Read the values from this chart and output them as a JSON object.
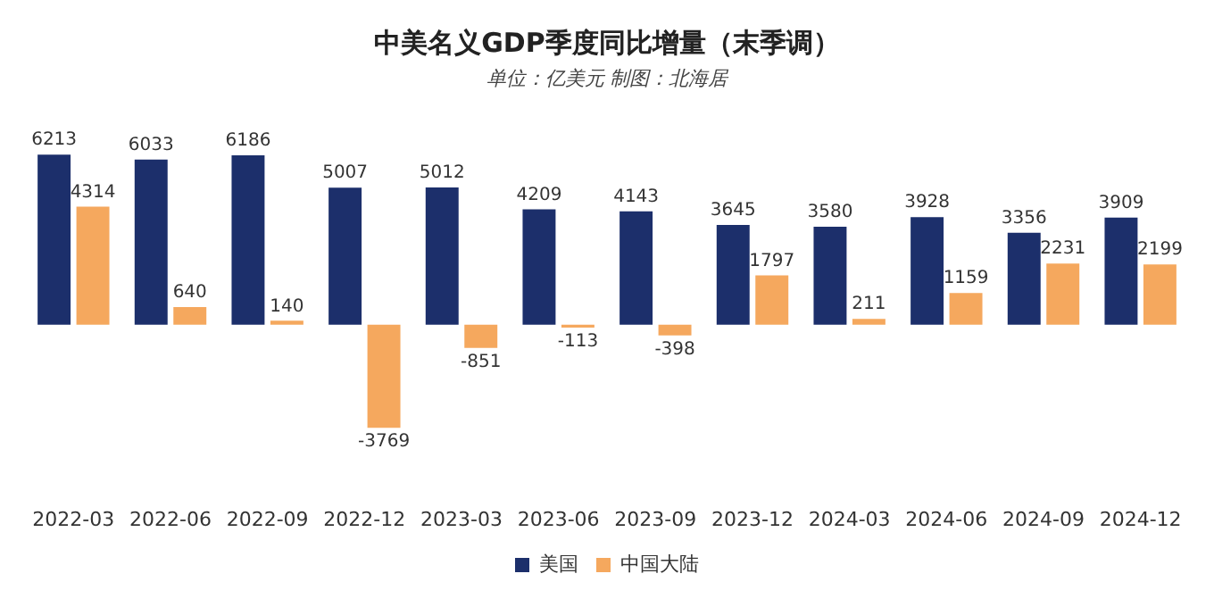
{
  "chart_data": {
    "type": "bar",
    "title": "中美名义GDP季度同比增量（末季调）",
    "subtitle": "单位：亿美元 制图：北海居",
    "categories": [
      "2022-03",
      "2022-06",
      "2022-09",
      "2022-12",
      "2023-03",
      "2023-06",
      "2023-09",
      "2023-12",
      "2024-03",
      "2024-06",
      "2024-09",
      "2024-12"
    ],
    "series": [
      {
        "name": "美国",
        "color": "#1c2f6b",
        "values": [
          6213,
          6033,
          6186,
          5007,
          5012,
          4209,
          4143,
          3645,
          3580,
          3928,
          3356,
          3909
        ]
      },
      {
        "name": "中国大陆",
        "color": "#f5a85e",
        "values": [
          4314,
          640,
          140,
          -3769,
          -851,
          -113,
          -398,
          1797,
          211,
          1159,
          2231,
          2199
        ]
      }
    ],
    "data_labels": true,
    "grid": false,
    "legend": "bottom"
  }
}
